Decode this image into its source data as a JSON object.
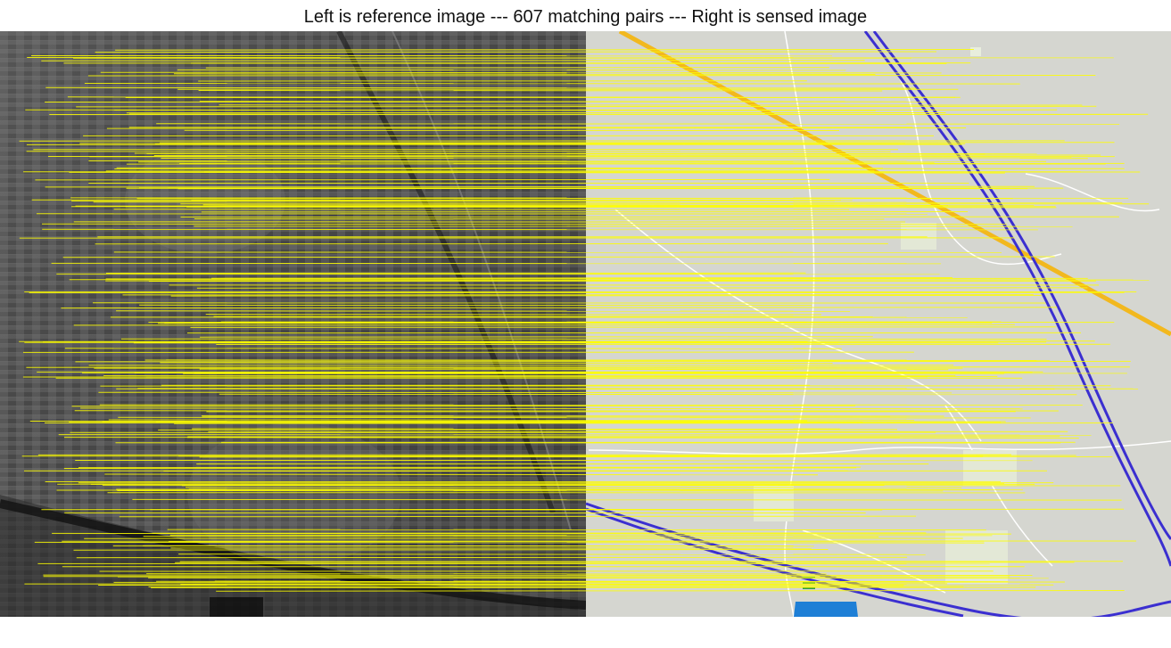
{
  "figure": {
    "title": "Left is reference image --- 607 matching pairs --- Right is sensed image"
  },
  "colors": {
    "match_line": "#ffff00",
    "reference_bg": "#555555",
    "sensed_bg": "#d5d6d0",
    "road_white": "#ffffff",
    "railway_blue": "#3b2fd0",
    "highway_orange": "#f2b81e",
    "water_blue": "#1e7fd6",
    "green_marks": "#2e9a4a"
  },
  "panels": {
    "reference": {
      "label": "reference image",
      "kind": "grayscale satellite image"
    },
    "sensed": {
      "label": "sensed image",
      "kind": "map rendering"
    }
  }
}
